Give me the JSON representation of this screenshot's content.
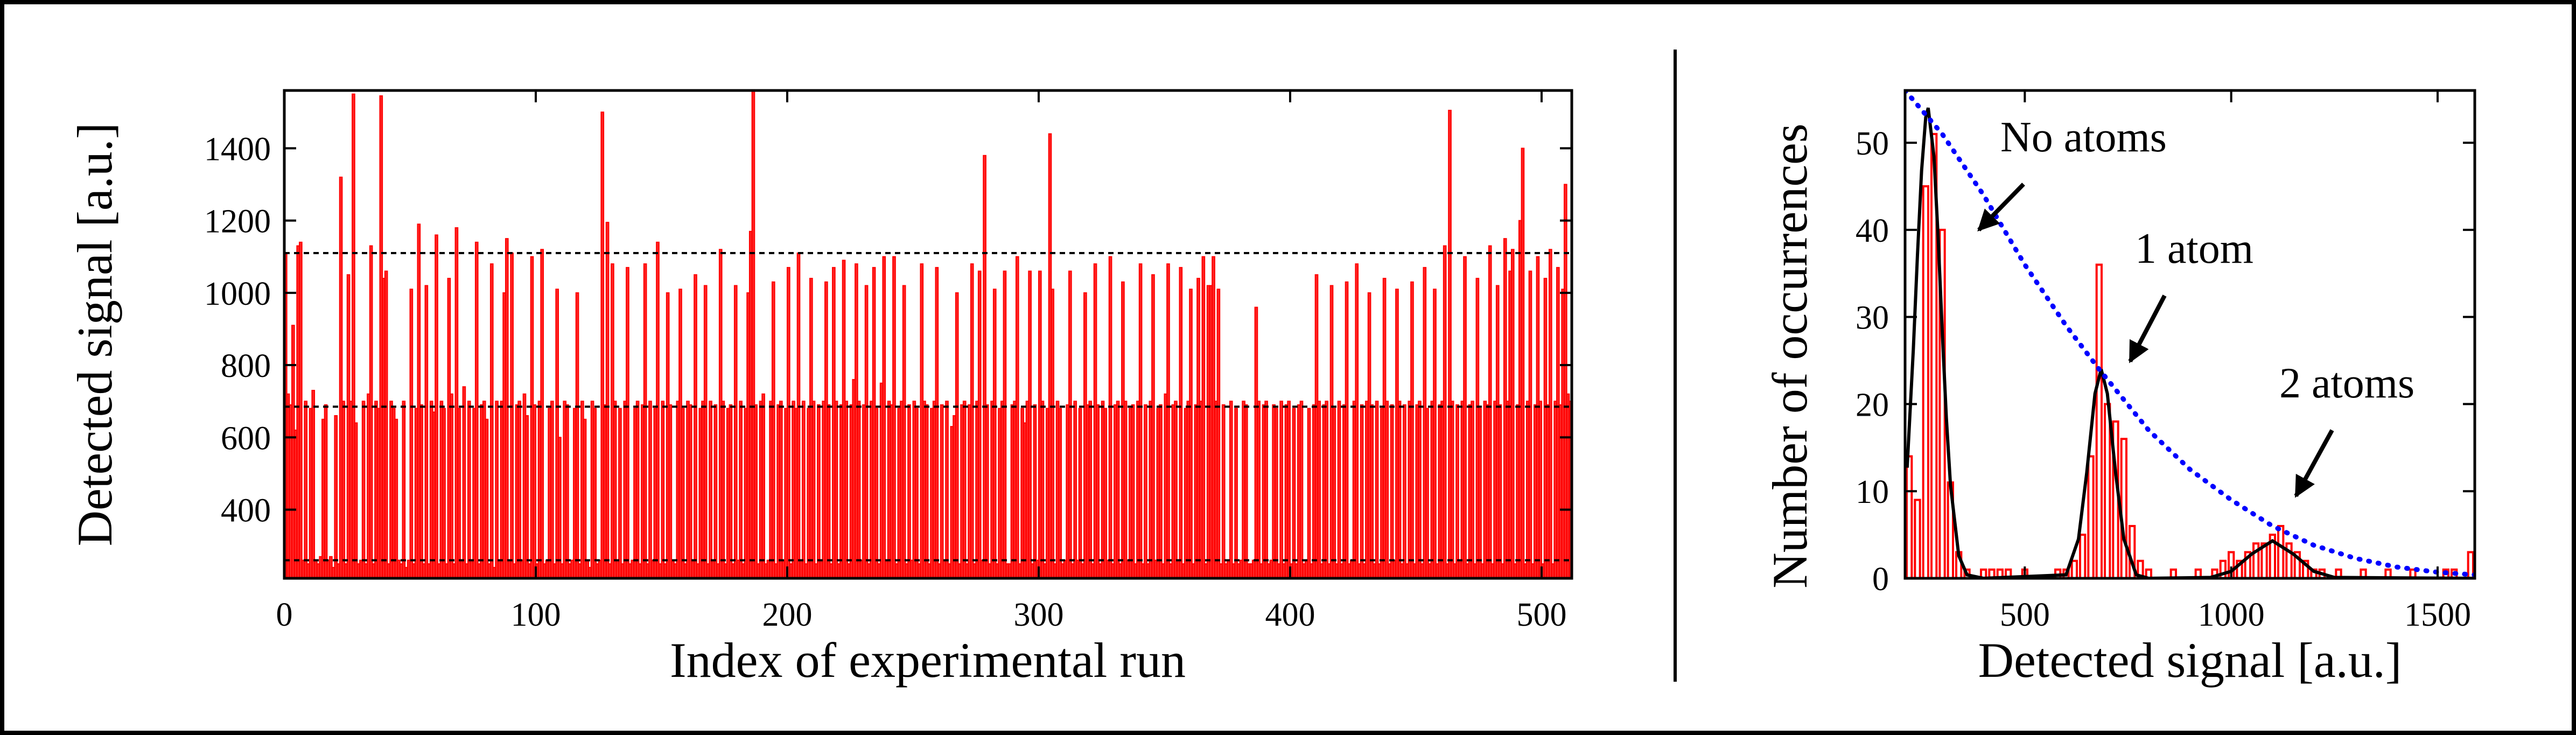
{
  "chart_data": [
    {
      "type": "bar",
      "xlabel": "Index of experimental run",
      "ylabel": "Detected signal [a.u.]",
      "color": "#ff0000",
      "xlim": [
        0,
        512
      ],
      "xticks": [
        0,
        100,
        200,
        300,
        400,
        500
      ],
      "ylim": [
        210,
        1560
      ],
      "yticks": [
        400,
        600,
        800,
        1000,
        1200,
        1400
      ],
      "hlines": [
        260,
        685,
        1110
      ],
      "values": [
        1110,
        720,
        690,
        910,
        620,
        1130,
        1140,
        260,
        700,
        250,
        680,
        730,
        260,
        250,
        270,
        650,
        690,
        260,
        270,
        240,
        660,
        250,
        1320,
        700,
        250,
        1050,
        700,
        1550,
        640,
        250,
        260,
        700,
        250,
        720,
        1130,
        250,
        700,
        680,
        1545,
        1040,
        1060,
        250,
        700,
        680,
        650,
        260,
        250,
        700,
        240,
        260,
        1010,
        250,
        680,
        1190,
        690,
        250,
        1020,
        250,
        700,
        670,
        1160,
        250,
        700,
        680,
        250,
        1040,
        720,
        250,
        1180,
        680,
        260,
        740,
        250,
        700,
        260,
        680,
        1140,
        250,
        690,
        700,
        650,
        250,
        1080,
        240,
        700,
        260,
        700,
        1000,
        1150,
        260,
        1110,
        250,
        690,
        700,
        260,
        720,
        660,
        250,
        1100,
        690,
        250,
        700,
        1120,
        250,
        260,
        680,
        700,
        250,
        1010,
        600,
        250,
        700,
        690,
        250,
        260,
        680,
        1000,
        250,
        700,
        650,
        260,
        240,
        700,
        680,
        250,
        260,
        1500,
        690,
        1195,
        250,
        1080,
        700,
        260,
        680,
        250,
        700,
        1070,
        250,
        260,
        680,
        700,
        250,
        690,
        1080,
        250,
        700,
        260,
        680,
        1140,
        250,
        700,
        250,
        1000,
        690,
        260,
        250,
        700,
        1010,
        680,
        250,
        700,
        690,
        260,
        1050,
        250,
        680,
        700,
        1020,
        250,
        700,
        260,
        690,
        250,
        1120,
        700,
        250,
        680,
        690,
        250,
        1020,
        260,
        700,
        250,
        680,
        1000,
        1170,
        1560,
        690,
        250,
        700,
        720,
        250,
        260,
        700,
        1030,
        250,
        690,
        700,
        260,
        680,
        1070,
        250,
        700,
        680,
        1110,
        260,
        700,
        250,
        680,
        1040,
        700,
        250,
        690,
        260,
        700,
        1030,
        690,
        250,
        1070,
        700,
        250,
        690,
        1090,
        700,
        250,
        690,
        760,
        1080,
        700,
        260,
        690,
        1020,
        250,
        700,
        1070,
        680,
        250,
        750,
        1100,
        260,
        700,
        690,
        1100,
        250,
        680,
        700,
        1020,
        250,
        690,
        260,
        700,
        680,
        250,
        1080,
        700,
        690,
        250,
        680,
        700,
        1070,
        250,
        690,
        260,
        700,
        250,
        630,
        660,
        1000,
        250,
        690,
        700,
        250,
        690,
        1080,
        250,
        700,
        1060,
        260,
        1380,
        690,
        250,
        700,
        1010,
        250,
        680,
        700,
        1060,
        250,
        250,
        690,
        700,
        1100,
        250,
        680,
        640,
        700,
        1060,
        250,
        690,
        260,
        1060,
        700,
        250,
        680,
        1440,
        1010,
        250,
        700,
        680,
        250,
        260,
        690,
        1060,
        250,
        700,
        260,
        680,
        250,
        1000,
        690,
        700,
        250,
        1080,
        690,
        250,
        700,
        680,
        260,
        1100,
        250,
        690,
        700,
        250,
        1030,
        700,
        260,
        680,
        690,
        250,
        700,
        1080,
        250,
        690,
        250,
        700,
        1050,
        260,
        680,
        690,
        250,
        720,
        1080,
        250,
        690,
        700,
        260,
        1070,
        250,
        680,
        700,
        1010,
        250,
        690,
        1040,
        700,
        1100,
        250,
        1020,
        1020,
        1100,
        700,
        1010,
        250,
        690,
        250,
        260,
        700,
        250,
        680,
        250,
        260,
        700,
        690,
        250,
        250,
        260,
        960,
        700,
        250,
        690,
        700,
        250,
        260,
        690,
        680,
        250,
        700,
        250,
        690,
        700,
        250,
        680,
        250,
        690,
        700,
        250,
        260,
        680,
        250,
        690,
        1050,
        700,
        250,
        690,
        700,
        250,
        1020,
        680,
        250,
        700,
        250,
        690,
        1030,
        250,
        260,
        700,
        1080,
        250,
        690,
        250,
        700,
        1000,
        690,
        250,
        700,
        250,
        680,
        1040,
        700,
        250,
        690,
        260,
        1010,
        700,
        250,
        690,
        250,
        700,
        1030,
        250,
        690,
        700,
        250,
        1070,
        680,
        250,
        700,
        1010,
        250,
        690,
        700,
        1130,
        250,
        1505,
        700,
        250,
        690,
        260,
        700,
        1100,
        250,
        690,
        700,
        250,
        1040,
        680,
        250,
        700,
        690,
        1130,
        250,
        700,
        1020,
        690,
        250,
        1150,
        700,
        1060,
        1120,
        250,
        690,
        1200,
        1400,
        250,
        700,
        1060,
        250,
        690,
        1100,
        700,
        250,
        1040,
        690,
        1120,
        250,
        700,
        1070,
        690,
        1010,
        1300,
        720,
        700
      ]
    },
    {
      "type": "histogram",
      "xlabel": "Detected signal [a.u.]",
      "ylabel": "Number of occurrences",
      "color": "#ff0000",
      "xlim": [
        210,
        1590
      ],
      "xticks": [
        500,
        1000,
        1500
      ],
      "ylim": [
        0,
        56
      ],
      "yticks": [
        0,
        10,
        20,
        30,
        40,
        50
      ],
      "bins": [
        210,
        230,
        250,
        270,
        290,
        310,
        330,
        350,
        370,
        390,
        410,
        430,
        450,
        470,
        490,
        510,
        530,
        550,
        570,
        590,
        610,
        630,
        650,
        670,
        690,
        710,
        730,
        750,
        770,
        790,
        810,
        830,
        850,
        870,
        890,
        910,
        930,
        950,
        970,
        990,
        1010,
        1030,
        1050,
        1070,
        1090,
        1110,
        1130,
        1150,
        1170,
        1190,
        1210,
        1230,
        1250,
        1270,
        1290,
        1310,
        1330,
        1350,
        1370,
        1390,
        1410,
        1430,
        1450,
        1470,
        1490,
        1510,
        1530,
        1550,
        1570,
        1590
      ],
      "counts": [
        14,
        9,
        45,
        51,
        40,
        11,
        3,
        1,
        0,
        1,
        1,
        1,
        1,
        0,
        1,
        0,
        0,
        0,
        1,
        1,
        2,
        5,
        14,
        36,
        20,
        18,
        16,
        6,
        2,
        1,
        0,
        0,
        1,
        0,
        0,
        1,
        0,
        1,
        2,
        3,
        2,
        3,
        4,
        4,
        5,
        6,
        4,
        3,
        2,
        1,
        1,
        0,
        1,
        0,
        0,
        1,
        0,
        0,
        1,
        0,
        0,
        1,
        0,
        0,
        0,
        1,
        1,
        0,
        3
      ],
      "lines": [
        {
          "color": "#000000",
          "style": "solid",
          "x": [
            215,
            230,
            240,
            250,
            260,
            266,
            280,
            290,
            300,
            310,
            320,
            340,
            360,
            400,
            600,
            630,
            650,
            670,
            685,
            700,
            720,
            740,
            770,
            800,
            950,
            1000,
            1050,
            1100,
            1150,
            1200,
            1250,
            1590
          ],
          "values": [
            12.7,
            26.3,
            37.1,
            46.8,
            52.9,
            54,
            48.4,
            39.2,
            28.4,
            18.4,
            10.7,
            2.6,
            0.4,
            0,
            0.4,
            4.5,
            12.1,
            21.2,
            24,
            21.2,
            12.1,
            4.5,
            0.4,
            0,
            0.1,
            0.8,
            2.8,
            4.3,
            2.8,
            0.8,
            0.1,
            0
          ]
        },
        {
          "color": "#0000ff",
          "style": "dotted",
          "x": [
            210,
            300,
            400,
            500,
            600,
            680,
            800,
            900,
            1000,
            1100,
            1200,
            1300,
            1400,
            1500,
            1590
          ],
          "values": [
            56,
            51,
            44,
            36,
            29,
            24,
            17,
            12.5,
            9,
            6,
            3.8,
            2.3,
            1.3,
            0.7,
            0.4
          ]
        }
      ],
      "annotations": [
        "No atoms",
        "1 atom",
        "2 atoms"
      ]
    }
  ]
}
